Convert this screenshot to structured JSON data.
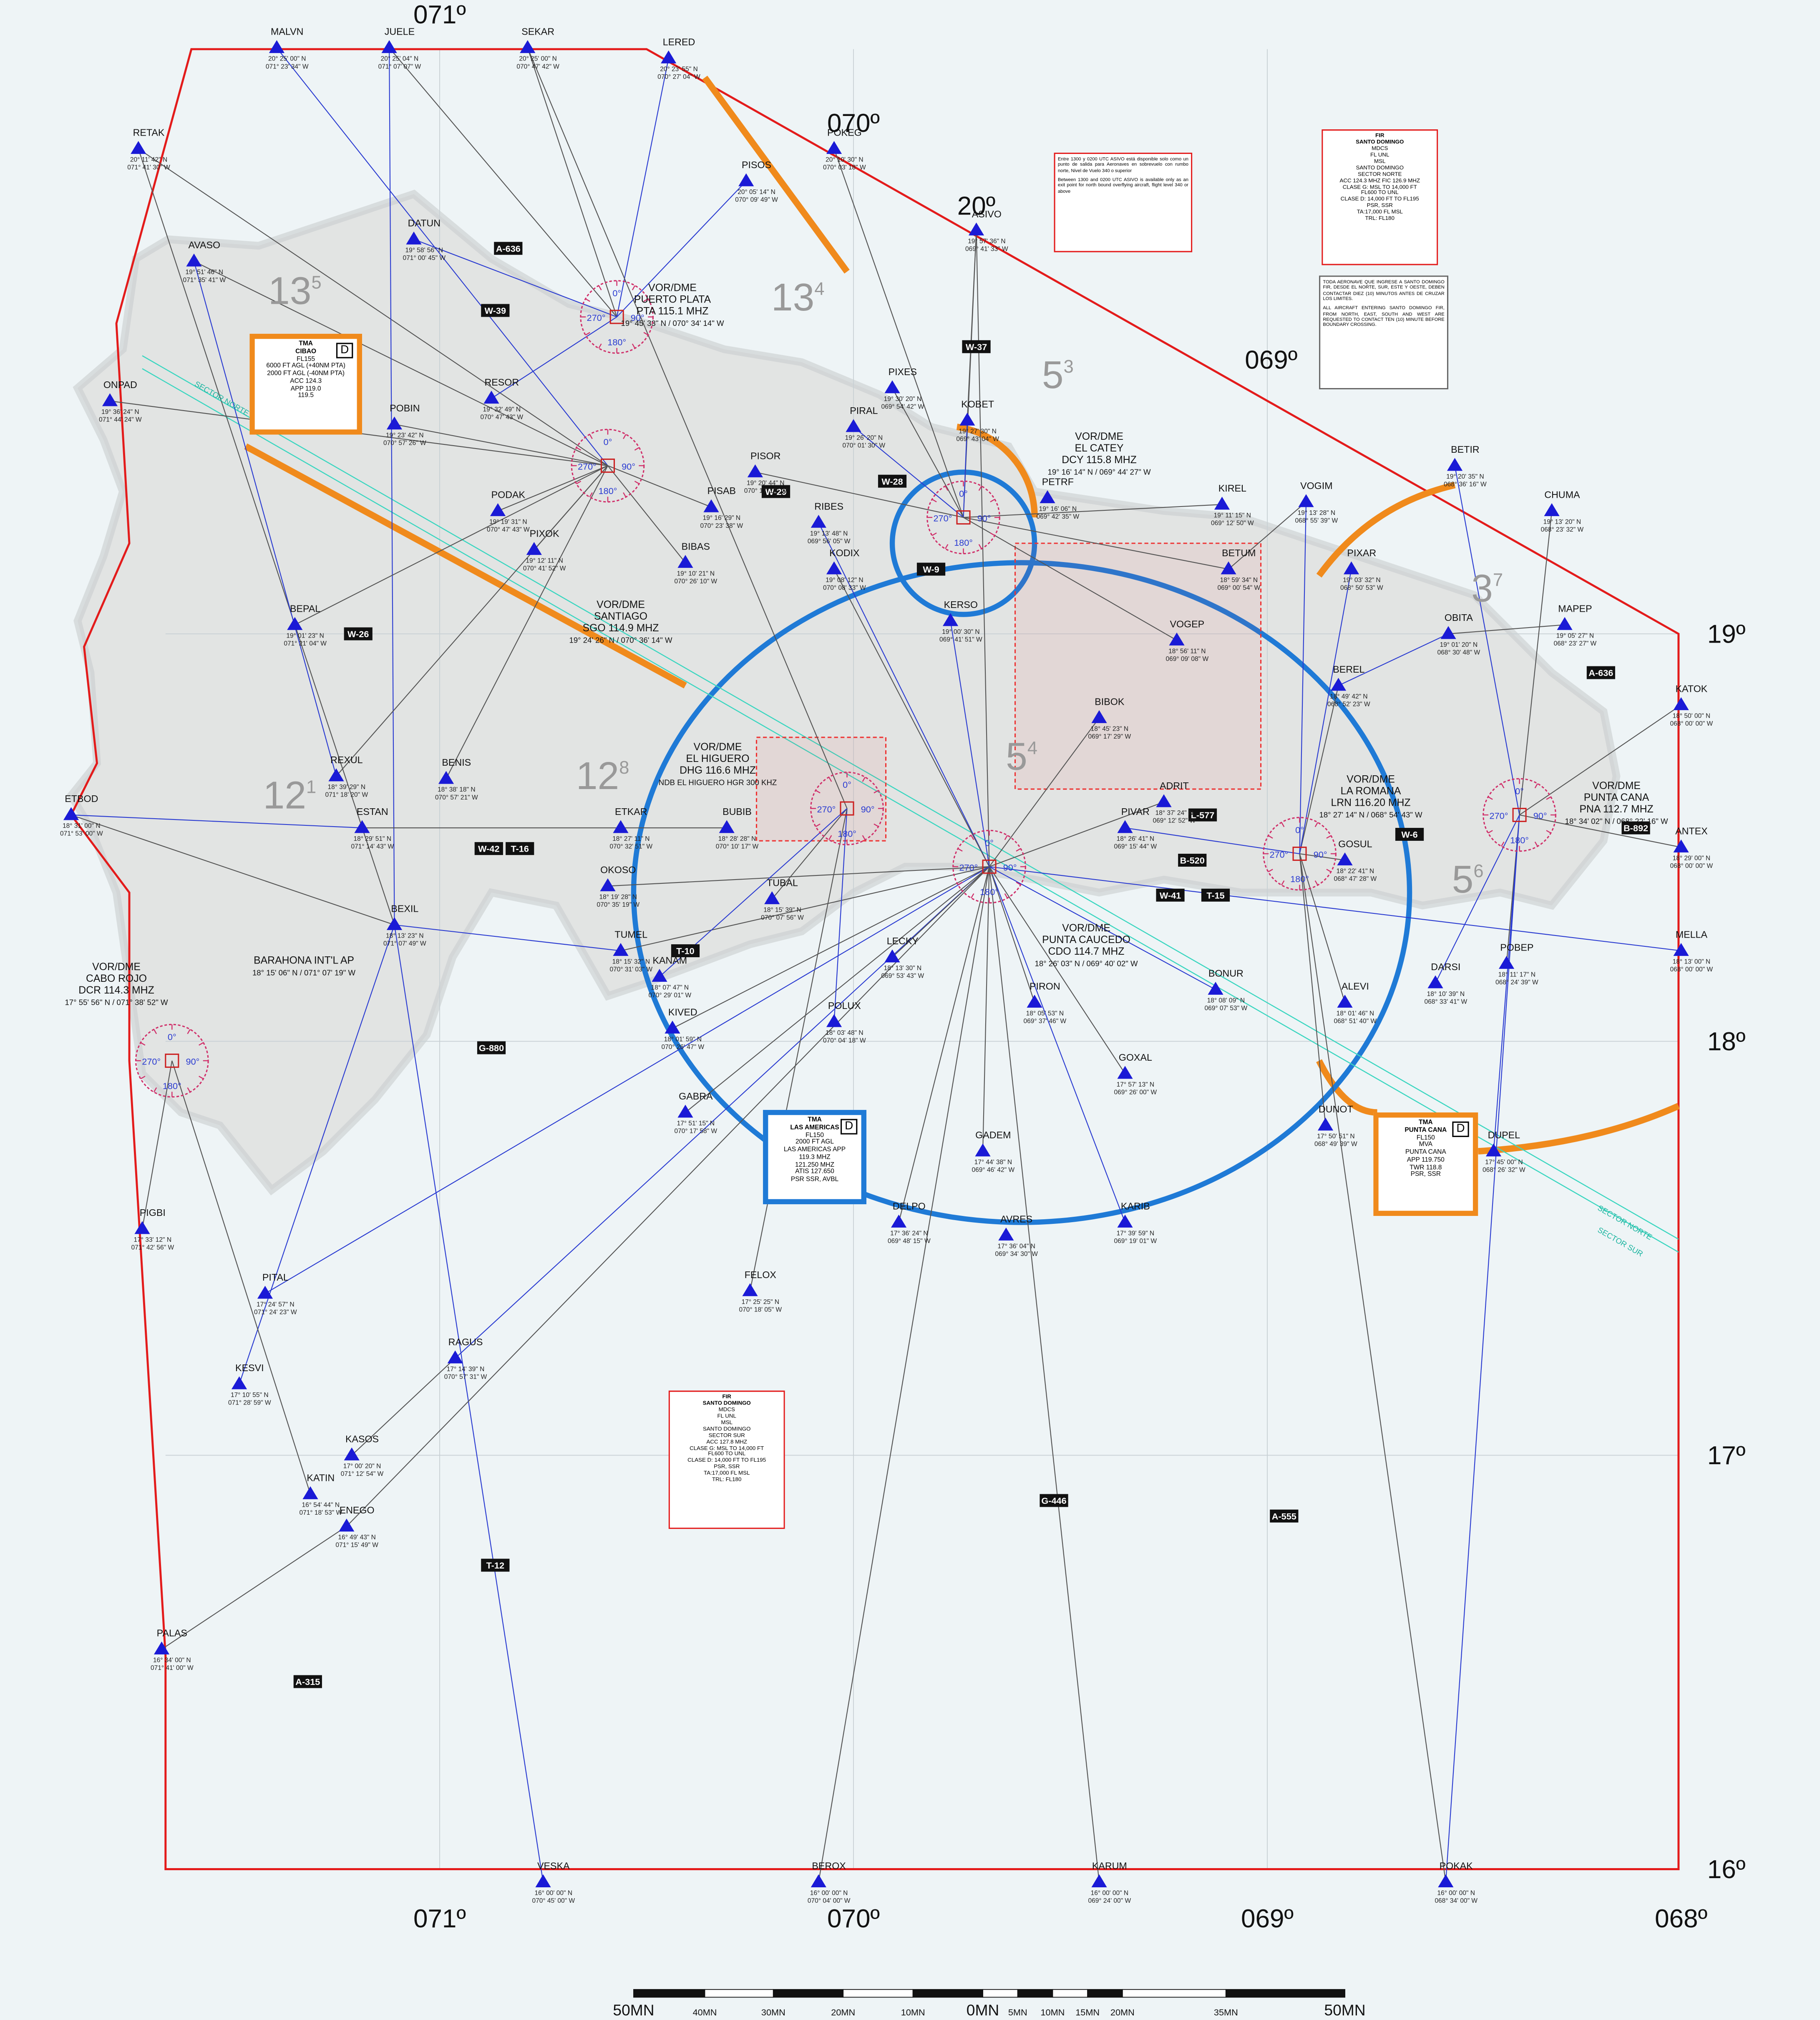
{
  "grid_labels": {
    "top": [
      "071º",
      "070º",
      "20º",
      "069º"
    ],
    "bottom": [
      "071º",
      "070º",
      "069º",
      "068º"
    ],
    "right": [
      "19º",
      "18º",
      "17º",
      "16º"
    ]
  },
  "waypoints": [
    {
      "name": "MALVN",
      "lat": "20° 25' 00\" N",
      "lon": "071° 23' 34\" W"
    },
    {
      "name": "JUELE",
      "lat": "20° 25' 04\" N",
      "lon": "071° 07' 07\" W"
    },
    {
      "name": "SEKAR",
      "lat": "20° 25' 00\" N",
      "lon": "070° 47' 42\" W"
    },
    {
      "name": "LERED",
      "lat": "20° 23' 55\" N",
      "lon": "070° 27' 04\" W"
    },
    {
      "name": "RETAK",
      "lat": "20° 11' 42\" N",
      "lon": "071° 41' 30\" W"
    },
    {
      "name": "POKEG",
      "lat": "20° 10' 30\" N",
      "lon": "070° 03' 18\" W"
    },
    {
      "name": "PISOS",
      "lat": "20° 05' 14\" N",
      "lon": "070° 09' 49\" W"
    },
    {
      "name": "ASIVO",
      "lat": "19° 57' 36\" N",
      "lon": "069° 41' 33\" W"
    },
    {
      "name": "DATUN",
      "lat": "19° 58' 56\" N",
      "lon": "071° 00' 45\" W"
    },
    {
      "name": "AVASO",
      "lat": "19° 51' 46\" N",
      "lon": "071° 35' 41\" W"
    },
    {
      "name": "ONPAD",
      "lat": "19° 36' 24\" N",
      "lon": "071° 44' 24\" W"
    },
    {
      "name": "POBIN",
      "lat": "19° 23' 42\" N",
      "lon": "070° 57' 26\" W"
    },
    {
      "name": "RESOR",
      "lat": "19° 32' 49\" N",
      "lon": "070° 47' 43\" W"
    },
    {
      "name": "PODAK",
      "lat": "19° 19' 31\" N",
      "lon": "070° 47' 43\" W"
    },
    {
      "name": "PIXOK",
      "lat": "19° 12' 11\" N",
      "lon": "070° 41' 52\" W"
    },
    {
      "name": "BEPAL",
      "lat": "19° 01' 23\" N",
      "lon": "071° 21' 04\" W"
    },
    {
      "name": "KOBET",
      "lat": "19° 27' 30\" N",
      "lon": "069° 43' 04\" W"
    },
    {
      "name": "PIXES",
      "lat": "19° 30' 20\" N",
      "lon": "069° 54' 42\" W"
    },
    {
      "name": "PIRAL",
      "lat": "19° 26' 20\" N",
      "lon": "070° 01' 30\" W"
    },
    {
      "name": "PISOR",
      "lat": "19° 20' 44\" N",
      "lon": "070° 17' 10\" W"
    },
    {
      "name": "PISAB",
      "lat": "19° 16' 29\" N",
      "lon": "070° 23' 38\" W"
    },
    {
      "name": "RIBES",
      "lat": "19° 13' 48\" N",
      "lon": "069° 56' 05\" W"
    },
    {
      "name": "BIBAS",
      "lat": "19° 10' 21\" N",
      "lon": "070° 26' 10\" W"
    },
    {
      "name": "KODIX",
      "lat": "19° 08' 12\" N",
      "lon": "070° 08' 33\" W"
    },
    {
      "name": "KERSO",
      "lat": "19° 00' 30\" N",
      "lon": "069° 41' 51\" W"
    },
    {
      "name": "PETRF",
      "lat": "19° 16' 06\" N",
      "lon": "069° 42' 35\" W"
    },
    {
      "name": "KIREL",
      "lat": "19° 11' 15\" N",
      "lon": "069° 12' 50\" W"
    },
    {
      "name": "VOGIM",
      "lat": "19° 13' 28\" N",
      "lon": "068° 55' 39\" W"
    },
    {
      "name": "BETIR",
      "lat": "19° 20' 35\" N",
      "lon": "068° 36' 16\" W"
    },
    {
      "name": "CHUMA",
      "lat": "19° 13' 20\" N",
      "lon": "068° 23' 32\" W"
    },
    {
      "name": "BETUM",
      "lat": "18° 59' 34\" N",
      "lon": "069° 00' 54\" W"
    },
    {
      "name": "MAPEP",
      "lat": "19° 05' 27\" N",
      "lon": "068° 23' 27\" W"
    },
    {
      "name": "OBITA",
      "lat": "19° 01' 20\" N",
      "lon": "068° 30' 48\" W"
    },
    {
      "name": "VOGEP",
      "lat": "18° 56' 11\" N",
      "lon": "069° 09' 08\" W"
    },
    {
      "name": "BEREL",
      "lat": "18° 49' 42\" N",
      "lon": "068° 52' 23\" W"
    },
    {
      "name": "KATOK",
      "lat": "18° 50' 00\" N",
      "lon": "068° 00' 00\" W"
    },
    {
      "name": "BIBOK",
      "lat": "18° 45' 23\" N",
      "lon": "069° 17' 29\" W"
    },
    {
      "name": "ANTEX",
      "lat": "18° 29' 00\" N",
      "lon": "068° 00' 00\" W"
    },
    {
      "name": "MELLA",
      "lat": "18° 13' 00\" N",
      "lon": "068° 00' 00\" W"
    },
    {
      "name": "REXUL",
      "lat": "18° 39' 29\" N",
      "lon": "071° 18' 20\" W"
    },
    {
      "name": "BENIS",
      "lat": "18° 38' 18\" N",
      "lon": "070° 57' 21\" W"
    },
    {
      "name": "ETBOD",
      "lat": "18° 31' 00\" N",
      "lon": "071° 53' 00\" W"
    },
    {
      "name": "ESTAN",
      "lat": "18° 29' 51\" N",
      "lon": "071° 14' 43\" W"
    },
    {
      "name": "ETKAR",
      "lat": "18° 27' 11\" N",
      "lon": "070° 32' 51\" W"
    },
    {
      "name": "BUBIB",
      "lat": "18° 28' 28\" N",
      "lon": "070° 10' 17\" W"
    },
    {
      "name": "OKOSO",
      "lat": "18° 19' 28\" N",
      "lon": "070° 35' 19\" W"
    },
    {
      "name": "TUBAL",
      "lat": "18° 15' 39\" N",
      "lon": "070° 07' 56\" W"
    },
    {
      "name": "BEXIL",
      "lat": "18° 13' 23\" N",
      "lon": "071° 07' 49\" W"
    },
    {
      "name": "TUMEL",
      "lat": "18° 15' 32\" N",
      "lon": "070° 31' 03\" W"
    },
    {
      "name": "PIVAR",
      "lat": "18° 26' 41\" N",
      "lon": "069° 15' 44\" W"
    },
    {
      "name": "ADRIT",
      "lat": "18° 37' 24\" N",
      "lon": "069° 12' 52\" W"
    },
    {
      "name": "LECKY",
      "lat": "18° 13' 30\" N",
      "lon": "069° 53' 43\" W"
    },
    {
      "name": "KANAM",
      "lat": "18° 07' 47\" N",
      "lon": "070° 29' 01\" W"
    },
    {
      "name": "KIVED",
      "lat": "18° 01' 59\" N",
      "lon": "070° 26' 47\" W"
    },
    {
      "name": "POLUX",
      "lat": "18° 03' 48\" N",
      "lon": "070° 04' 18\" W"
    },
    {
      "name": "PIRON",
      "lat": "18° 05' 53\" N",
      "lon": "069° 37' 46\" W"
    },
    {
      "name": "GOXAL",
      "lat": "17° 57' 13\" N",
      "lon": "069° 26' 00\" W"
    },
    {
      "name": "DARSI",
      "lat": "18° 10' 39\" N",
      "lon": "068° 33' 41\" W"
    },
    {
      "name": "POBEP",
      "lat": "18° 11' 17\" N",
      "lon": "068° 24' 39\" W"
    },
    {
      "name": "GABRA",
      "lat": "17° 51' 15\" N",
      "lon": "070° 17' 58\" W"
    },
    {
      "name": "DUNOT",
      "lat": "17° 50' 51\" N",
      "lon": "068° 49' 39\" W"
    },
    {
      "name": "DUPEL",
      "lat": "17° 45' 00\" N",
      "lon": "068° 26' 32\" W"
    },
    {
      "name": "GADEM",
      "lat": "17° 44' 38\" N",
      "lon": "069° 46' 42\" W"
    },
    {
      "name": "DELPO",
      "lat": "17° 36' 24\" N",
      "lon": "069° 48' 15\" W"
    },
    {
      "name": "AVRES",
      "lat": "17° 36' 04\" N",
      "lon": "069° 34' 30\" W"
    },
    {
      "name": "KARIB",
      "lat": "17° 39' 59\" N",
      "lon": "069° 19' 01\" W"
    },
    {
      "name": "PIGBI",
      "lat": "17° 33' 12\" N",
      "lon": "071° 42' 56\" W"
    },
    {
      "name": "PITAL",
      "lat": "17° 24' 57\" N",
      "lon": "071° 24' 23\" W"
    },
    {
      "name": "FELOX",
      "lat": "17° 25' 25\" N",
      "lon": "070° 18' 05\" W"
    },
    {
      "name": "RAGUS",
      "lat": "17° 14' 39\" N",
      "lon": "070° 57' 31\" W"
    },
    {
      "name": "KESVI",
      "lat": "17° 10' 55\" N",
      "lon": "071° 28' 59\" W"
    },
    {
      "name": "KASOS",
      "lat": "17° 00' 20\" N",
      "lon": "071° 12' 54\" W"
    },
    {
      "name": "KATIN",
      "lat": "16° 54' 44\" N",
      "lon": "071° 18' 53\" W"
    },
    {
      "name": "ENEGO",
      "lat": "16° 49' 43\" N",
      "lon": "071° 15' 49\" W"
    },
    {
      "name": "PALAS",
      "lat": "16° 34' 00\" N",
      "lon": "071° 41' 00\" W"
    },
    {
      "name": "VESKA",
      "lat": "16° 00' 00\" N",
      "lon": "070° 45' 00\" W"
    },
    {
      "name": "BEROX",
      "lat": "16° 00' 00\" N",
      "lon": "070° 04' 00\" W"
    },
    {
      "name": "KARUM",
      "lat": "16° 00' 00\" N",
      "lon": "069° 24' 00\" W"
    },
    {
      "name": "POKAK",
      "lat": "16° 00' 00\" N",
      "lon": "068° 34' 00\" W"
    },
    {
      "name": "BONUR",
      "lat": "18° 08' 09\" N",
      "lon": "069° 07' 53\" W"
    },
    {
      "name": "ALEVI",
      "lat": "18° 01' 46\" N",
      "lon": "068° 51' 40\" W"
    },
    {
      "name": "GOSUL",
      "lat": "18° 22' 41\" N",
      "lon": "068° 47' 28\" W"
    },
    {
      "name": "PIXAR",
      "lat": "19° 03' 32\" N",
      "lon": "068° 50' 53\" W"
    }
  ],
  "navaids": [
    {
      "type": "VOR/DME",
      "name": "PUERTO PLATA",
      "ident": "PTA 115.1 MHZ",
      "coords": "19° 45' 33\" N / 070° 34' 14\" W"
    },
    {
      "type": "VOR/DME",
      "name": "SANTIAGO",
      "ident": "SGO 114.9 MHZ",
      "coords": "19° 24' 26\" N / 070° 36' 14\" W"
    },
    {
      "type": "VOR/DME",
      "name": "EL CATEY",
      "ident": "DCY 115.8 MHZ",
      "coords": "19° 16' 14\" N / 069° 44' 27\" W"
    },
    {
      "type": "VOR/DME",
      "name": "EL HIGUERO",
      "ident": "DHG 116.6 MHZ",
      "coords": "NDB EL HIGUERO HGR 300 KHZ"
    },
    {
      "type": "VOR/DME",
      "name": "PUNTA CAUCEDO",
      "ident": "CDO 114.7 MHZ",
      "coords": "18° 26' 03\" N / 069° 40' 02\" W"
    },
    {
      "type": "VOR/DME",
      "name": "LA ROMANA",
      "ident": "LRN 116.20 MHZ",
      "coords": "18° 27' 14\" N / 068° 54' 43\" W"
    },
    {
      "type": "VOR/DME",
      "name": "PUNTA CANA",
      "ident": "PNA 112.7 MHZ",
      "coords": "18° 34' 02\" N / 068° 22' 16\" W"
    },
    {
      "type": "VOR/DME",
      "name": "CABO ROJO",
      "ident": "DCR 114.3 MHZ",
      "coords": "17° 55' 56\" N / 071° 38' 52\" W"
    }
  ],
  "airport": {
    "name": "BARAHONA INT'L AP",
    "coords": "18° 15' 06\" N / 071° 07' 19\" W"
  },
  "compass": [
    "0°",
    "90°",
    "180°",
    "270°"
  ],
  "airways": [
    "W-37",
    "A-636",
    "W-39",
    "W-29",
    "W-28",
    "W-42",
    "T-16",
    "T-10",
    "B-520",
    "L-577",
    "B-892",
    "G-880",
    "W-6",
    "W-41",
    "T-15",
    "A-315",
    "G-446",
    "A-555",
    "T-12",
    "W-26",
    "A-636",
    "W-9"
  ],
  "sectors": [
    {
      "main": "13",
      "sub": "5"
    },
    {
      "main": "13",
      "sub": "4"
    },
    {
      "main": "5",
      "sub": "3"
    },
    {
      "main": "12",
      "sub": "1"
    },
    {
      "main": "12",
      "sub": "8"
    },
    {
      "main": "5",
      "sub": "4"
    },
    {
      "main": "3",
      "sub": "7"
    },
    {
      "main": "5",
      "sub": "6"
    }
  ],
  "sector_lines": [
    "SECTOR NORTE",
    "SECTOR SUR"
  ],
  "fir_boxes": [
    {
      "lines": [
        "FIR",
        "SANTO DOMINGO",
        "MDCS",
        "FL UNL",
        "MSL",
        "SANTO DOMINGO",
        "SECTOR NORTE",
        "ACC 124.3 MHZ FIC 126.9 MHZ",
        "CLASE G: MSL TO 14,000 FT",
        "FL600 TO UNL",
        "CLASE D: 14,000 FT TO FL195",
        "PSR, SSR",
        "TA:17,000 FL MSL",
        "TRL: FL180"
      ]
    },
    {
      "lines": [
        "FIR",
        "SANTO DOMINGO",
        "MDCS",
        "FL UNL",
        "MSL",
        "SANTO DOMINGO",
        "SECTOR SUR",
        "ACC 127.8 MHZ",
        "CLASE G: MSL TO 14,000 FT",
        "FL600 TO UNL",
        "CLASE D: 14,000 FT TO FL195",
        "PSR, SSR",
        "TA:17,000 FL MSL",
        "TRL: FL180"
      ]
    }
  ],
  "tma_boxes": [
    {
      "class": "D",
      "lines": [
        "TMA",
        "CIBAO",
        "FL155",
        "6000 FT AGL (+40NM PTA)",
        "2000 FT AGL (-40NM PTA)",
        "ACC 124.3",
        "APP 119.0",
        "119.5"
      ]
    },
    {
      "class": "D",
      "lines": [
        "TMA",
        "LAS AMERICAS",
        "FL150",
        "2000 FT AGL",
        "LAS AMERICAS APP",
        "119.3 MHZ",
        "121.250 MHZ",
        "ATIS 127.650",
        "PSR SSR, AVBL"
      ]
    },
    {
      "class": "D",
      "lines": [
        "TMA",
        "PUNTA CANA",
        "FL150",
        "MVA",
        "PUNTA CANA",
        "APP 119.750",
        "TWR 118.8",
        "PSR, SSR"
      ]
    }
  ],
  "notes": [
    [
      "Entre 1300 y 0200 UTC ASIVO está disponible solo como un punto de salida para Aeronaves en sobrevuelo con rumbo norte, Nivel de Vuelo 340 o superior",
      "Between 1300 and 0200 UTC ASIVO is available only as an exit point for north bound overflying aircraft, flight level 340 or above"
    ],
    [
      "TODA AERONAVE QUE INGRESE A SANTO DOMINGO FIR, DESDE EL NORTE, SUR, ESTE Y OESTE, DEBEN CONTACTAR DIEZ (10) MINUTOS ANTES DE CRUZAR LOS LIMITES.",
      "ALL AIRCRAFT ENTERING SANTO DOMINGO FIR, FROM NORTH, EAST, SOUTH AND WEST ARE REQUESTED TO CONTACT TEN (10) MINUTE BEFORE BOUNDARY CROSSING."
    ]
  ],
  "scale": [
    "50MN",
    "40MN",
    "30MN",
    "20MN",
    "10MN",
    "0MN",
    "5MN",
    "10MN",
    "15MN",
    "20MN",
    "35MN",
    "50MN"
  ]
}
